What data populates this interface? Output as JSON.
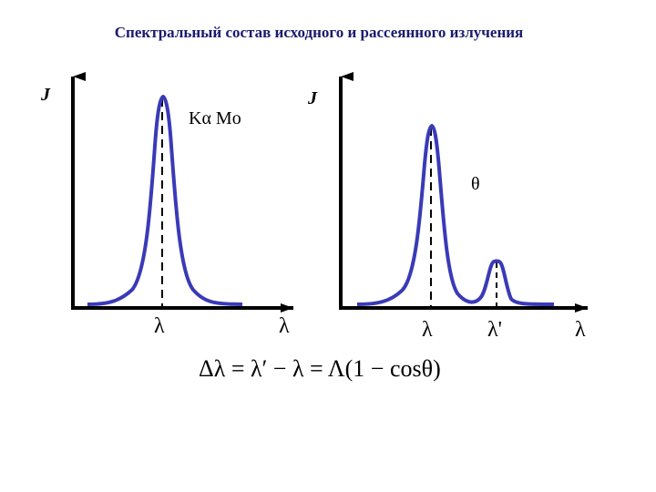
{
  "title": "Спектральный состав исходного и рассеянного излучения",
  "left_plot": {
    "y_label": "J",
    "x_label": "λ",
    "peak_label": "Kα Mo",
    "peak_x_label": "λ"
  },
  "right_plot": {
    "y_label": "J",
    "x_label": "λ",
    "angle_label": "θ",
    "peak1_x_label": "λ",
    "peak2_x_label": "λ'"
  },
  "formula": "Δλ = λ′ − λ = Λ(1 − cosθ)",
  "colors": {
    "curve": "#3a3ab8",
    "axis": "#000000",
    "title": "#1a1a6e"
  }
}
